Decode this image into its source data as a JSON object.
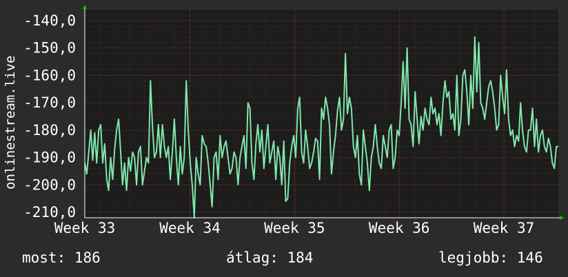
{
  "chart_data": {
    "type": "line",
    "ylabel": "onlinestream.live",
    "ylim": [
      -212,
      -136
    ],
    "yticks": [
      "-140,0",
      "-150,0",
      "-160,0",
      "-170,0",
      "-180,0",
      "-190,0",
      "-200,0",
      "-210,0"
    ],
    "ytick_values": [
      -140,
      -150,
      -160,
      -170,
      -180,
      -190,
      -200,
      -210
    ],
    "xlim": [
      0,
      100
    ],
    "xticks": [
      "Week 33",
      "Week 34",
      "Week 35",
      "Week 36",
      "Week 37"
    ],
    "xtick_values": [
      0,
      22.2,
      44.3,
      66.4,
      88.5
    ],
    "grid": true,
    "line_color": "#7fe7a9",
    "series": [
      {
        "values": [
          -192,
          -196,
          -188,
          -180,
          -191,
          -181,
          -192,
          -180,
          -178,
          -192,
          -185,
          -198,
          -202,
          -190,
          -198,
          -187,
          -180,
          -176,
          -188,
          -200,
          -192,
          -202,
          -190,
          -195,
          -188,
          -190,
          -200,
          -188,
          -186,
          -200,
          -195,
          -190,
          -192,
          -162,
          -178,
          -190,
          -188,
          -178,
          -190,
          -178,
          -186,
          -190,
          -186,
          -198,
          -188,
          -176,
          -190,
          -200,
          -186,
          -196,
          -190,
          -162,
          -180,
          -192,
          -200,
          -212,
          -190,
          -196,
          -200,
          -182,
          -185,
          -186,
          -192,
          -200,
          -208,
          -190,
          -188,
          -198,
          -182,
          -190,
          -186,
          -184,
          -190,
          -196,
          -194,
          -188,
          -190,
          -200,
          -190,
          -186,
          -182,
          -194,
          -170,
          -172,
          -192,
          -198,
          -185,
          -178,
          -188,
          -180,
          -194,
          -186,
          -178,
          -192,
          -188,
          -184,
          -198,
          -186,
          -190,
          -200,
          -184,
          -206,
          -205,
          -192,
          -186,
          -182,
          -190,
          -172,
          -168,
          -188,
          -192,
          -180,
          -186,
          -194,
          -192,
          -188,
          -183,
          -184,
          -198,
          -172,
          -176,
          -168,
          -172,
          -178,
          -196,
          -188,
          -182,
          -173,
          -168,
          -180,
          -176,
          -152,
          -174,
          -168,
          -172,
          -186,
          -190,
          -182,
          -196,
          -200,
          -180,
          -186,
          -192,
          -202,
          -190,
          -186,
          -178,
          -186,
          -192,
          -194,
          -182,
          -186,
          -190,
          -180,
          -178,
          -194,
          -190,
          -180,
          -182,
          -170,
          -155,
          -172,
          -150,
          -176,
          -178,
          -186,
          -166,
          -176,
          -185,
          -175,
          -180,
          -172,
          -176,
          -178,
          -168,
          -174,
          -172,
          -178,
          -174,
          -182,
          -170,
          -162,
          -168,
          -166,
          -176,
          -174,
          -180,
          -160,
          -182,
          -176,
          -160,
          -158,
          -166,
          -178,
          -160,
          -172,
          -146,
          -166,
          -148,
          -170,
          -172,
          -176,
          -170,
          -164,
          -162,
          -166,
          -172,
          -180,
          -178,
          -160,
          -168,
          -174,
          -158,
          -176,
          -182,
          -180,
          -186,
          -182,
          -184,
          -170,
          -180,
          -186,
          -188,
          -180,
          -180,
          -172,
          -186,
          -176,
          -188,
          -182,
          -180,
          -186,
          -188,
          -183,
          -186,
          -192,
          -194,
          -186,
          -186
        ]
      }
    ]
  },
  "stats": {
    "current": "most: 186",
    "average": "átlag: 184",
    "best": "legjobb: 146"
  }
}
